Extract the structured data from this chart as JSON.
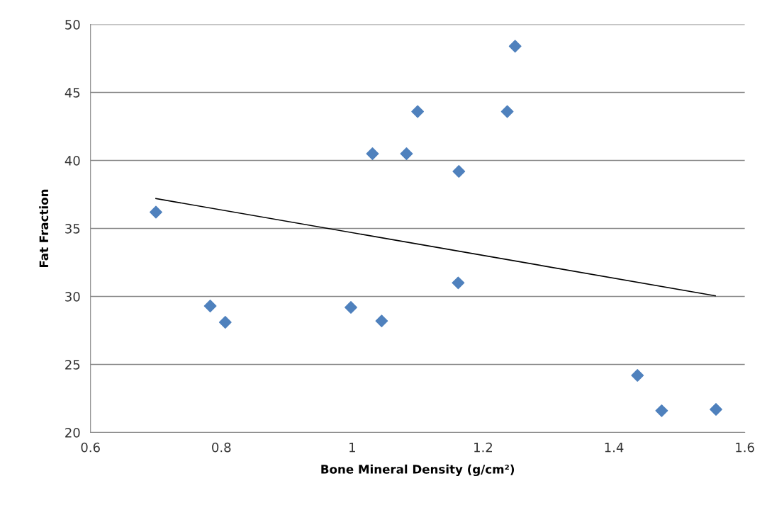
{
  "chart_data": {
    "type": "scatter",
    "xlabel": "Bone Mineral Density (g/cm²)",
    "ylabel": "Fat Fraction",
    "xlim": [
      0.6,
      1.6
    ],
    "xticks": [
      0.6,
      0.8,
      {
        "value": 1.0,
        "label": "1"
      },
      1.2,
      1.4,
      1.6
    ],
    "ylim": [
      20,
      50
    ],
    "yticks": [
      20,
      25,
      30,
      35,
      40,
      45,
      50
    ],
    "grid": "y",
    "legend": false,
    "series": [
      {
        "marker": "diamond",
        "color": "#4f81bd",
        "x": [
          0.7,
          0.783,
          0.806,
          0.998,
          1.031,
          1.045,
          1.083,
          1.1,
          1.163,
          1.162,
          1.237,
          1.249,
          1.436,
          1.473,
          1.556
        ],
        "values": [
          36.2,
          29.3,
          28.1,
          29.2,
          40.5,
          28.2,
          40.5,
          43.6,
          39.2,
          31.0,
          43.6,
          48.4,
          24.2,
          21.6,
          21.7
        ]
      },
      {
        "type": "line",
        "marker": "none",
        "color": "#000000",
        "x": [
          0.7,
          1.555
        ],
        "values": [
          37.2,
          30.05
        ]
      }
    ]
  }
}
